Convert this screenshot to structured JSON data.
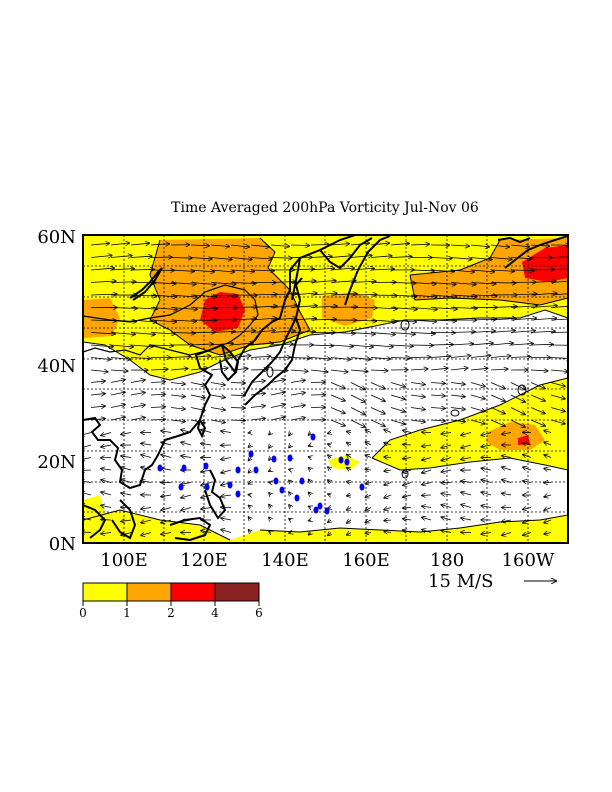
{
  "title": "Time Averaged 200hPa Vorticity Jul-Nov 06",
  "colors": {
    "level_0_1": "#ffff00",
    "level_1_2": "#ffa500",
    "level_2_4": "#ff0000",
    "level_4_6": "#8b2222",
    "coast": "#000000",
    "storm_track": "#0000ff"
  },
  "lat_labels": [
    "60N",
    "40N",
    "20N",
    "0N"
  ],
  "lon_labels": [
    "100E",
    "120E",
    "140E",
    "160E",
    "180",
    "160W"
  ],
  "colorbar": {
    "labels": [
      "0",
      "1",
      "2",
      "4",
      "6"
    ]
  },
  "vector_reference": {
    "label": "15 M/S"
  }
}
